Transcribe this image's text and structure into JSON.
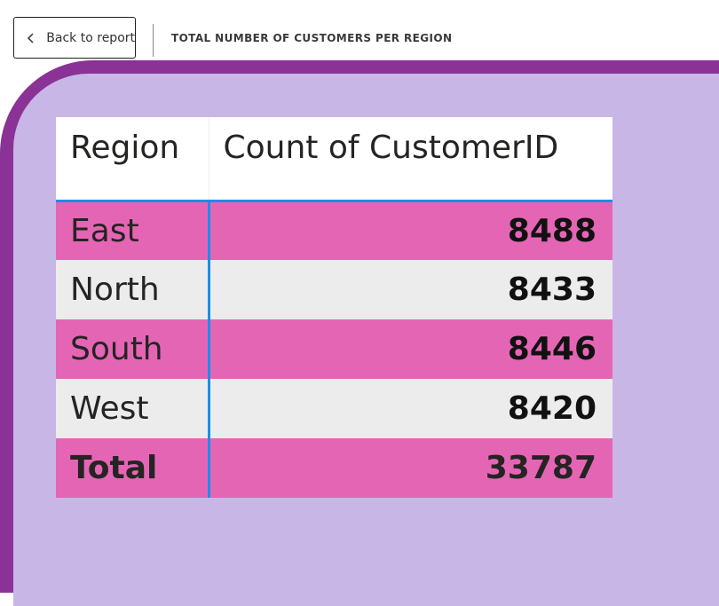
{
  "header": {
    "back_button_label": "Back to report",
    "page_title": "TOTAL NUMBER OF CUSTOMERS PER REGION"
  },
  "colors": {
    "canvas_border": "#8a3296",
    "canvas_background": "#c8b6e6",
    "row_highlight": "#e565b5",
    "row_alt": "#ececec",
    "accent_line": "#1a8ee8"
  },
  "icons": {
    "back": "chevron-left-icon"
  },
  "table": {
    "columns": [
      "Region",
      "Count of CustomerID"
    ],
    "rows": [
      {
        "region": "East",
        "count": "8488"
      },
      {
        "region": "North",
        "count": "8433"
      },
      {
        "region": "South",
        "count": "8446"
      },
      {
        "region": "West",
        "count": "8420"
      }
    ],
    "total": {
      "label": "Total",
      "count": "33787"
    }
  }
}
